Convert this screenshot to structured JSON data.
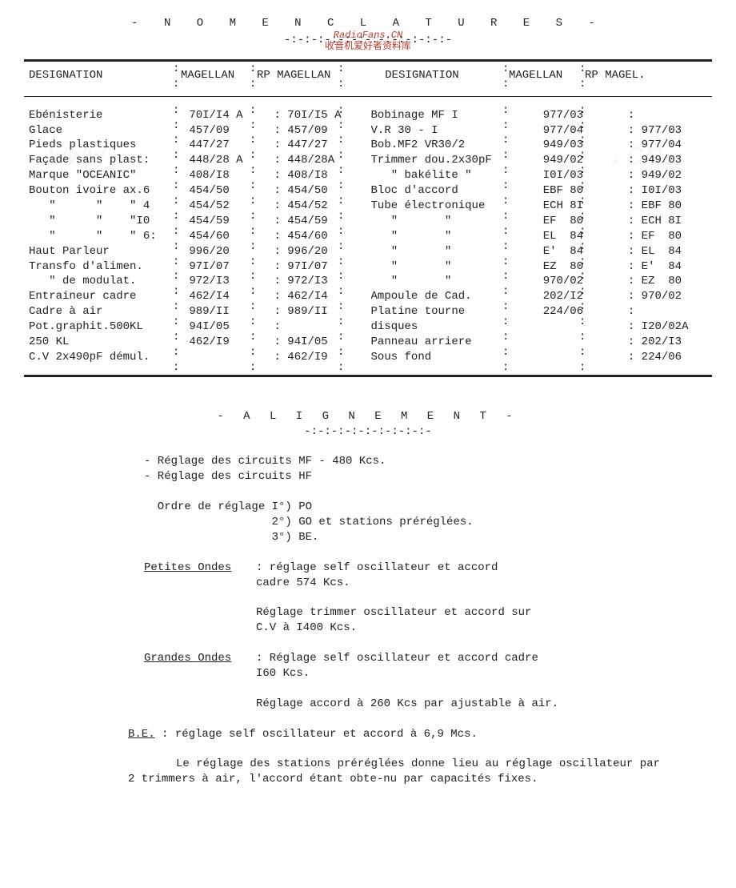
{
  "watermark": {
    "line1": "RadioFans.CN",
    "line2": "收音机爱好者资料库"
  },
  "title1": "- N O M E N C L A T U R E S -",
  "title_sep": "-:-:-:-:-:-:-:-:-:-:-:-:-",
  "headers": {
    "des": "DESIGNATION",
    "mag": "MAGELLAN",
    "rp": "RP MAGELLAN",
    "rp2": "RP MAGEL."
  },
  "left_rows": [
    {
      "d": "Ebénisterie",
      "m": "70I/I4 A",
      "r": "70I/I5 A"
    },
    {
      "d": "Glace",
      "m": "457/09",
      "r": "457/09"
    },
    {
      "d": "Pieds plastiques",
      "m": "447/27",
      "r": "447/27"
    },
    {
      "d": "Façade sans plast:",
      "m": "448/28 A",
      "r": "448/28A"
    },
    {
      "d": "Marque \"OCEANIC\"",
      "m": "408/I8",
      "r": "408/I8"
    },
    {
      "d": "Bouton ivoire ax.6",
      "m": "454/50",
      "r": "454/50"
    },
    {
      "d": "   \"      \"    \" 4",
      "m": "454/52",
      "r": "454/52"
    },
    {
      "d": "   \"      \"    \"I0",
      "m": "454/59",
      "r": "454/59"
    },
    {
      "d": "   \"      \"    \" 6:",
      "m": "454/60",
      "r": "454/60"
    },
    {
      "d": "Haut Parleur",
      "m": "996/20",
      "r": "996/20"
    },
    {
      "d": "Transfo d'alimen.",
      "m": "97I/07",
      "r": "97I/07"
    },
    {
      "d": "   \" de modulat.",
      "m": "972/I3",
      "r": "972/I3"
    },
    {
      "d": "Entraineur cadre",
      "m": "462/I4",
      "r": "462/I4"
    },
    {
      "d": "Cadre à air",
      "m": "989/II",
      "r": "989/II"
    },
    {
      "d": "Pot.graphit.500KL",
      "m": "",
      "r": ""
    },
    {
      "d": "250 KL",
      "m": "94I/05",
      "r": "94I/05"
    },
    {
      "d": "C.V 2x490pF démul.",
      "m": "462/I9",
      "r": "462/I9"
    }
  ],
  "right_rows": [
    {
      "d": "Bobinage MF I",
      "m": "",
      "r": ""
    },
    {
      "d": "V.R 30 - I",
      "m": "977/03",
      "r": "977/03"
    },
    {
      "d": "Bob.MF2 VR30/2",
      "m": "977/04",
      "r": "977/04"
    },
    {
      "d": "Trimmer dou.2x30pF",
      "m": "949/03",
      "r": "949/03"
    },
    {
      "d": "   \" bakélite \"",
      "m": "949/02",
      "r": "949/02"
    },
    {
      "d": "Bloc d'accord",
      "m": "I0I/03",
      "r": "I0I/03"
    },
    {
      "d": "Tube électronique",
      "m": "EBF 80",
      "r": "EBF 80"
    },
    {
      "d": "   \"       \"",
      "m": "ECH 8I",
      "r": "ECH 8I"
    },
    {
      "d": "   \"       \"",
      "m": "EF  80",
      "r": "EF  80"
    },
    {
      "d": "   \"       \"",
      "m": "EL  84",
      "r": "EL  84"
    },
    {
      "d": "   \"       \"",
      "m": "E'  84",
      "r": "E'  84"
    },
    {
      "d": "   \"       \"",
      "m": "EZ  80",
      "r": "EZ  80"
    },
    {
      "d": "Ampoule de Cad.",
      "m": "970/02",
      "r": "970/02"
    },
    {
      "d": "Platine tourne",
      "m": "",
      "r": ""
    },
    {
      "d": "disques",
      "m": "",
      "r": "I20/02A"
    },
    {
      "d": "Panneau arriere",
      "m": "202/I2",
      "r": "202/I3"
    },
    {
      "d": "Sous fond",
      "m": "224/06",
      "r": "224/06"
    }
  ],
  "title2": "- A L I G N E M E N T -",
  "title2_sep": "-:-:-:-:-:-:-:-:-:-",
  "align": {
    "l1": "- Réglage des circuits MF - 480 Kcs.",
    "l2": "- Réglage des circuits HF",
    "ordre": "  Ordre de réglage I°) PO",
    "ordre2": "                   2°) GO et stations préréglées.",
    "ordre3": "                   3°) BE.",
    "po_lab": "Petites Ondes",
    "po_txt": ": réglage self oscillateur et accord\n  cadre 574 Kcs.",
    "po_txt2": "Réglage trimmer oscillateur et accord sur\nC.V à I400 Kcs.",
    "go_lab": "Grandes Ondes",
    "go_txt": ": Réglage self oscillateur et accord cadre\n  I60 Kcs.",
    "go_txt2": "Réglage accord à 260 Kcs par ajustable à air.",
    "be_lab": "B.E.",
    "be_txt": " : réglage self oscillateur et accord à 6,9 Mcs.",
    "final": "Le réglage des stations préréglées donne lieu au réglage oscillateur par 2 trimmers à air, l'accord étant obte-nu par capacités fixes."
  }
}
